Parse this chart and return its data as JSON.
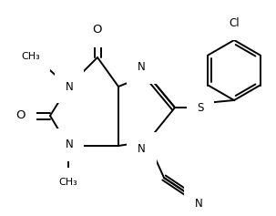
{
  "background_color": "#ffffff",
  "line_color": "#000000",
  "line_width": 1.4,
  "font_size": 8.5,
  "figsize": [
    3.03,
    2.37
  ],
  "dpi": 100,
  "xlim": [
    0,
    303
  ],
  "ylim": [
    0,
    237
  ]
}
